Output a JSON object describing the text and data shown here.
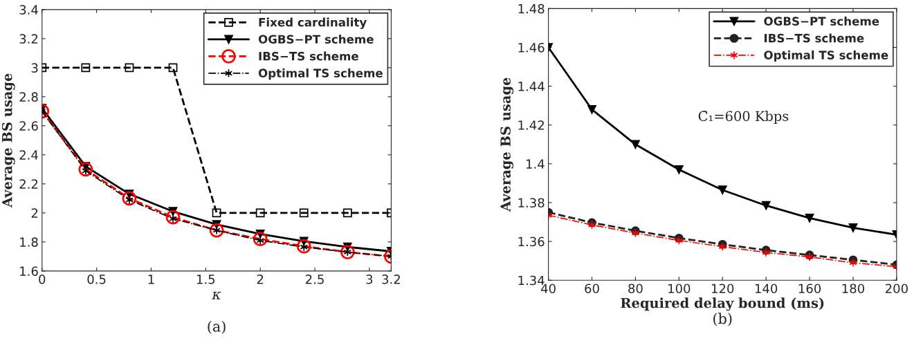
{
  "chart_data": [
    {
      "type": "line",
      "xlabel": "κ",
      "ylabel": "Average BS usage",
      "x": [
        0,
        0.4,
        0.8,
        1.2,
        1.6,
        2.0,
        2.4,
        2.8,
        3.2
      ],
      "xlim": [
        0,
        3.2
      ],
      "xticks": [
        0,
        0.5,
        1,
        1.5,
        2,
        2.5,
        3,
        3.2
      ],
      "ylim": [
        1.6,
        3.4
      ],
      "yticks": [
        1.6,
        1.8,
        2,
        2.2,
        2.4,
        2.6,
        2.8,
        3,
        3.2,
        3.4
      ],
      "grid": false,
      "legend": "top right",
      "annotations": [
        "(a)"
      ],
      "series": [
        {
          "name": "Fixed cardinality",
          "color": "#000000",
          "marker": "square",
          "line_style": "dashed",
          "values": [
            3,
            3,
            3,
            3,
            2,
            2,
            2,
            2,
            2
          ]
        },
        {
          "name": "OGBS−PT scheme",
          "color": "#000000",
          "marker": "triangle",
          "line_style": "solid",
          "values": [
            2.72,
            2.32,
            2.13,
            2.01,
            1.92,
            1.855,
            1.805,
            1.765,
            1.735
          ]
        },
        {
          "name": "IBS−TS scheme",
          "color": "#ff0000",
          "marker": "circle",
          "line_style": "dashed",
          "values": [
            2.7,
            2.3,
            2.1,
            1.97,
            1.88,
            1.82,
            1.77,
            1.73,
            1.7
          ]
        },
        {
          "name": "Optimal TS scheme",
          "color": "#000000",
          "marker": "cross",
          "line_style": "dashdot",
          "values": [
            2.7,
            2.29,
            2.09,
            1.96,
            1.88,
            1.81,
            1.765,
            1.73,
            1.7
          ]
        }
      ]
    },
    {
      "type": "line",
      "xlabel": "Required delay bound (ms)",
      "ylabel": "Average BS usage",
      "x": [
        40,
        60,
        80,
        100,
        120,
        140,
        160,
        180,
        200
      ],
      "xlim": [
        40,
        200
      ],
      "xticks": [
        40,
        60,
        80,
        100,
        120,
        140,
        160,
        180,
        200
      ],
      "ylim": [
        1.34,
        1.48
      ],
      "yticks": [
        1.34,
        1.36,
        1.38,
        {
          "value": 1.4,
          "label": "1.4"
        },
        1.42,
        1.44,
        1.46,
        1.48
      ],
      "grid": false,
      "legend": "top right",
      "annotations": [
        "C̄₁=600 Kbps",
        "(b)"
      ],
      "series": [
        {
          "name": "OGBS−PT scheme",
          "color": "#000000",
          "marker": "triangle",
          "line_style": "solid",
          "values": [
            1.46,
            1.428,
            1.41,
            1.397,
            1.3865,
            1.3785,
            1.372,
            1.367,
            1.3635
          ]
        },
        {
          "name": "IBS−TS scheme",
          "color": "#222222",
          "marker": "circle",
          "line_style": "dashed",
          "values": [
            1.375,
            1.3697,
            1.3655,
            1.3617,
            1.3585,
            1.3555,
            1.353,
            1.3505,
            1.348
          ]
        },
        {
          "name": "Optimal TS scheme",
          "color": "#ff0000",
          "marker": "cross",
          "line_style": "dashdot",
          "values": [
            1.3735,
            1.3685,
            1.3643,
            1.3605,
            1.3573,
            1.3543,
            1.352,
            1.349,
            1.347
          ]
        }
      ]
    }
  ]
}
